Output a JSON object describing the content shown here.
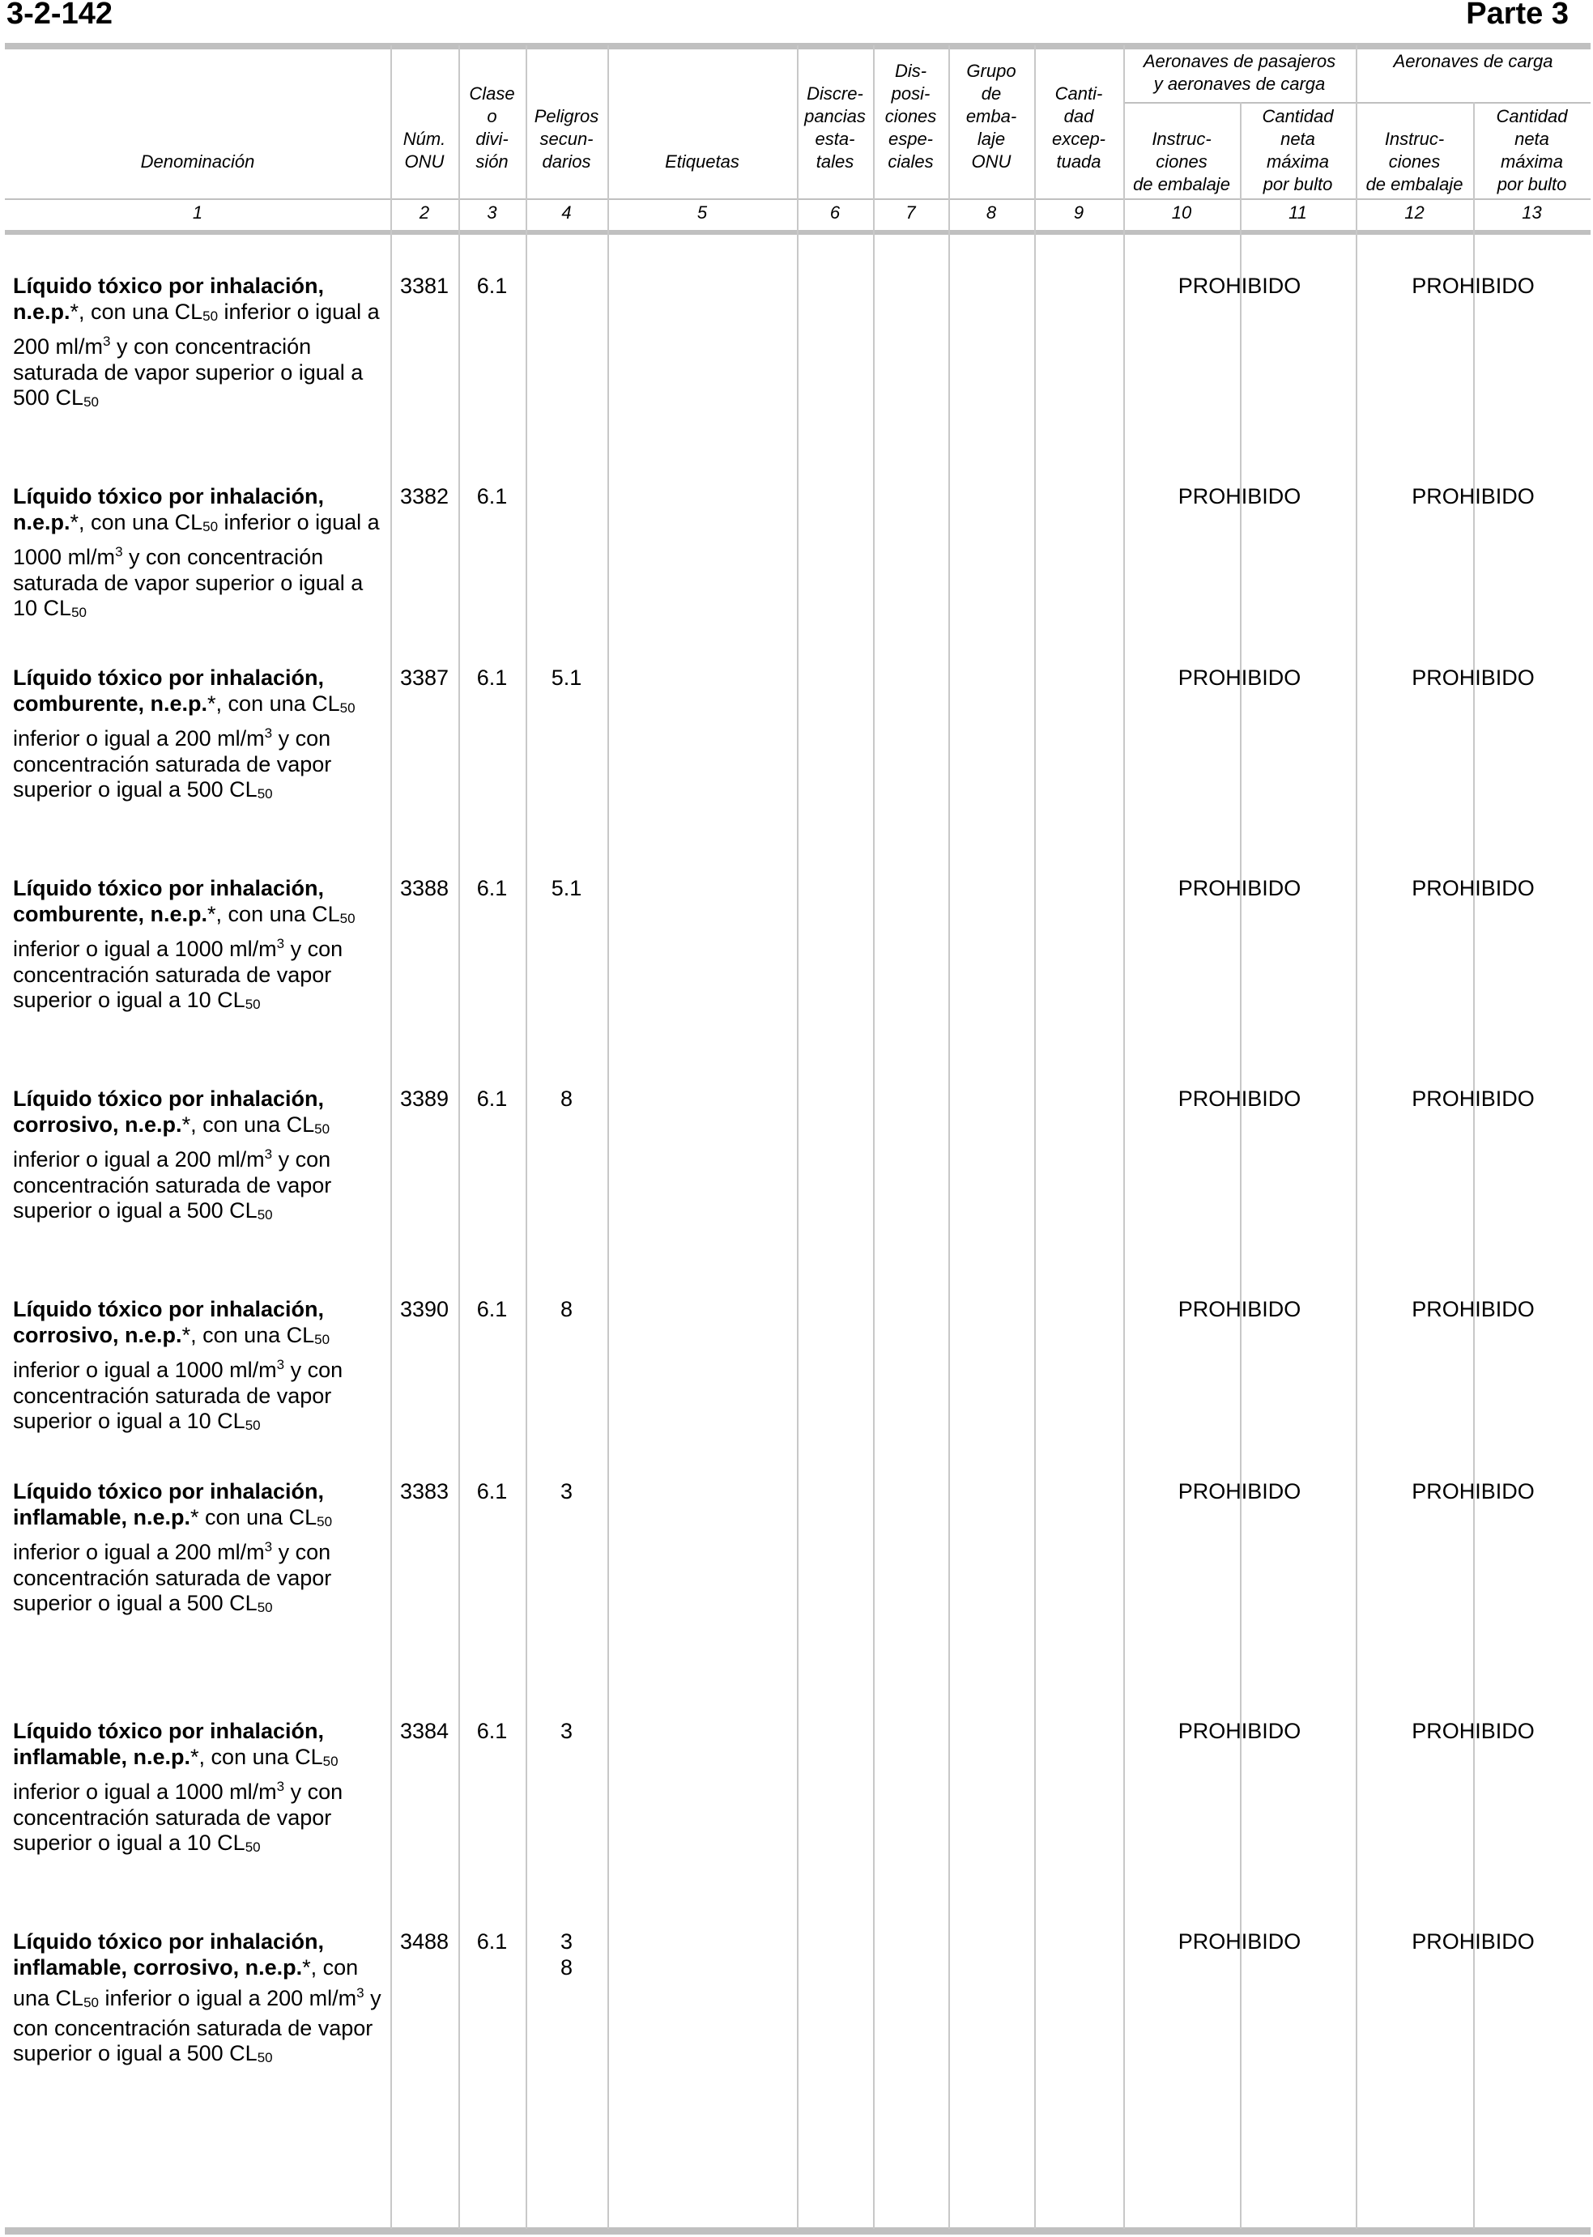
{
  "page": {
    "number": "3-2-142",
    "part": "Parte 3"
  },
  "columns": {
    "c1": "Denominación",
    "c2": [
      "Núm.",
      "ONU"
    ],
    "c3": [
      "Clase",
      "o",
      "divi-",
      "sión"
    ],
    "c4": [
      "Peligros",
      "secun-",
      "darios"
    ],
    "c5": "Etiquetas",
    "c6": [
      "Discre-",
      "pancias",
      "esta-",
      "tales"
    ],
    "c7": [
      "Dis-",
      "posi-",
      "ciones",
      "espe-",
      "ciales"
    ],
    "c8": [
      "Grupo",
      "de",
      "emba-",
      "laje",
      "ONU"
    ],
    "c9": [
      "Canti-",
      "dad",
      "excep-",
      "tuada"
    ],
    "group_pax": [
      "Aeronaves de pasajeros",
      "y aeronaves de carga"
    ],
    "group_cargo": "Aeronaves de carga",
    "instr": [
      "Instruc-",
      "ciones",
      "de embalaje"
    ],
    "qty": [
      "Cantidad",
      "neta",
      "máxima",
      "por bulto"
    ],
    "numbers": [
      "1",
      "2",
      "3",
      "4",
      "5",
      "6",
      "7",
      "8",
      "9",
      "10",
      "11",
      "12",
      "13"
    ]
  },
  "rows": [
    {
      "bold": "Líquido tóxico por inhalación, n.e.p.",
      "rest": "*, con una CL<sub>50</sub> inferior o igual a 200 ml/m<sup>3</sup> y con concentración saturada de vapor superior o igual a 500 CL<sub>50</sub>",
      "un": "3381",
      "cls": "6.1",
      "sec": "",
      "pax": "PROHIBIDO",
      "cargo": "PROHIBIDO"
    },
    {
      "bold": "Líquido tóxico por inhalación, n.e.p.",
      "rest": "*, con una CL<sub>50</sub> inferior o igual a 1000 ml/m<sup>3</sup> y con concentración saturada de vapor superior o igual a 10 CL<sub>50</sub>",
      "un": "3382",
      "cls": "6.1",
      "sec": "",
      "pax": "PROHIBIDO",
      "cargo": "PROHIBIDO"
    },
    {
      "bold": "Líquido tóxico por inhalación, comburente, n.e.p.",
      "rest": "*, con una CL<sub>50</sub> inferior o igual a 200 ml/m<sup>3</sup> y con concentración saturada de vapor superior o igual a 500 CL<sub>50</sub>",
      "un": "3387",
      "cls": "6.1",
      "sec": "5.1",
      "pax": "PROHIBIDO",
      "cargo": "PROHIBIDO"
    },
    {
      "bold": "Líquido tóxico por inhalación, comburente, n.e.p.",
      "rest": "*, con una CL<sub>50</sub> inferior o igual a 1000 ml/m<sup>3</sup> y con concentración saturada de vapor superior o igual  a 10 CL<sub>50</sub>",
      "un": "3388",
      "cls": "6.1",
      "sec": "5.1",
      "pax": "PROHIBIDO",
      "cargo": "PROHIBIDO"
    },
    {
      "bold": "Líquido tóxico por inhalación, corrosivo, n.e.p.",
      "rest": "*, con una CL<sub>50</sub> inferior o igual a 200 ml/m<sup>3</sup> y con concentración saturada de vapor superior o igual a 500 CL<sub>50</sub>",
      "un": "3389",
      "cls": "6.1",
      "sec": "8",
      "pax": "PROHIBIDO",
      "cargo": "PROHIBIDO"
    },
    {
      "bold": "Líquido tóxico por inhalación, corrosivo, n.e.p.",
      "rest": "*, con una CL<sub>50</sub> inferior o igual a 1000 ml/m<sup>3</sup> y con concentración saturada de vapor superior o igual a 10 CL<sub>50</sub>",
      "un": "3390",
      "cls": "6.1",
      "sec": "8",
      "pax": "PROHIBIDO",
      "cargo": "PROHIBIDO"
    },
    {
      "bold": "Líquido tóxico por inhalación, inflamable, n.e.p.",
      "rest": "* con una CL<sub>50</sub> inferior o igual a 200 ml/m<sup>3</sup> y con concentración saturada de vapor superior o igual a 500 CL<sub>50</sub>",
      "un": "3383",
      "cls": "6.1",
      "sec": "3",
      "pax": "PROHIBIDO",
      "cargo": "PROHIBIDO"
    },
    {
      "bold": "Líquido tóxico por inhalación, inflamable, n.e.p.",
      "rest": "*, con una CL<sub>50</sub> inferior o igual a 1000 ml/m<sup>3</sup> y con concentración saturada de vapor superior o igual a 10 CL<sub>50</sub>",
      "un": "3384",
      "cls": "6.1",
      "sec": "3",
      "pax": "PROHIBIDO",
      "cargo": "PROHIBIDO"
    },
    {
      "bold": "Líquido tóxico por inhalación, inflamable, corrosivo, n.e.p.",
      "rest": "*, con una CL<sub>50</sub> inferior o igual a 200 ml/m<sup>3</sup> y con concentración saturada de vapor superior o igual a 500 CL<sub>50</sub>",
      "un": "3488",
      "cls": "6.1",
      "sec": "3\n8",
      "pax": "PROHIBIDO",
      "cargo": "PROHIBIDO"
    }
  ]
}
